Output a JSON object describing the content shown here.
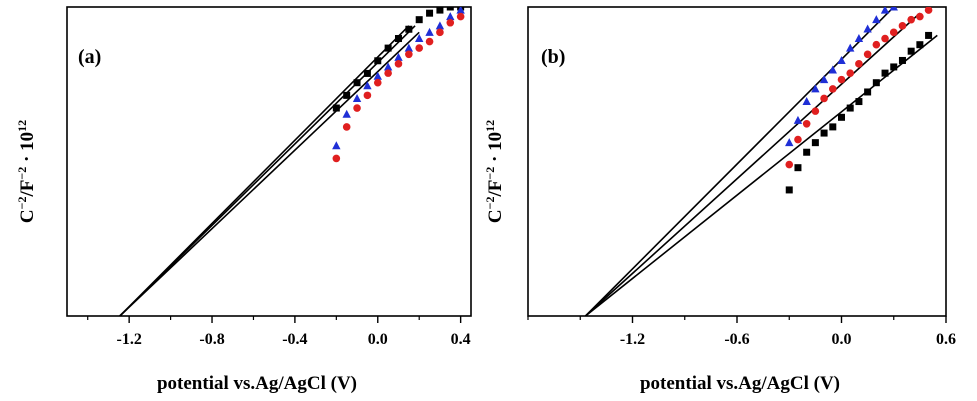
{
  "colors": {
    "square": "#000000",
    "triangle": "#1f2fd6",
    "circle": "#e01f1f",
    "axis": "#000000",
    "fit_line": "#000000"
  },
  "chart_data": [
    {
      "type": "scatter",
      "panel_label": "(a)",
      "xlabel": "potential vs.Ag/AgCl (V)",
      "ylabel": "C",
      "ylabel_sup1": "−2",
      "ylabel_mid": "/F",
      "ylabel_sup2": "−2",
      "ylabel_tail": " · 10",
      "ylabel_sup3": "12",
      "xlim": [
        -1.5,
        0.45
      ],
      "ylim": [
        0,
        1
      ],
      "xticks": [
        -1.2,
        -0.8,
        -0.4,
        0.0,
        0.4
      ],
      "xtick_labels": [
        "-1.2",
        "-0.8",
        "-0.4",
        "0.0",
        "0.4"
      ],
      "x_minor_step": 0.2,
      "series": [
        {
          "marker": "square",
          "color": "#000000",
          "x": [
            -0.2,
            -0.15,
            -0.1,
            -0.05,
            0.0,
            0.05,
            0.1,
            0.15,
            0.2,
            0.25,
            0.3,
            0.35,
            0.4
          ],
          "y": [
            0.673,
            0.714,
            0.755,
            0.785,
            0.826,
            0.867,
            0.898,
            0.928,
            0.959,
            0.98,
            0.99,
            1.0,
            1.0
          ]
        },
        {
          "marker": "triangle",
          "color": "#1f2fd6",
          "x": [
            -0.2,
            -0.15,
            -0.1,
            -0.05,
            0.0,
            0.05,
            0.1,
            0.15,
            0.2,
            0.25,
            0.3,
            0.35,
            0.4
          ],
          "y": [
            0.551,
            0.653,
            0.704,
            0.745,
            0.776,
            0.806,
            0.837,
            0.867,
            0.898,
            0.918,
            0.939,
            0.969,
            0.99
          ]
        },
        {
          "marker": "circle",
          "color": "#e01f1f",
          "x": [
            -0.2,
            -0.15,
            -0.1,
            -0.05,
            0.0,
            0.05,
            0.1,
            0.15,
            0.2,
            0.25,
            0.3,
            0.35,
            0.4
          ],
          "y": [
            0.51,
            0.612,
            0.673,
            0.714,
            0.755,
            0.786,
            0.816,
            0.847,
            0.867,
            0.888,
            0.918,
            0.949,
            0.969
          ]
        }
      ],
      "fit_lines": [
        {
          "x": [
            -1.245,
            0.15
          ],
          "y": [
            0.0,
            0.939
          ]
        },
        {
          "x": [
            -1.245,
            0.18
          ],
          "y": [
            0.0,
            0.939
          ]
        },
        {
          "x": [
            -1.245,
            0.2
          ],
          "y": [
            0.0,
            0.918
          ]
        }
      ]
    },
    {
      "type": "scatter",
      "panel_label": "(b)",
      "xlabel": "potential vs.Ag/AgCl (V)",
      "ylabel": "C",
      "ylabel_sup1": "−2",
      "ylabel_mid": "/F",
      "ylabel_sup2": "−2",
      "ylabel_tail": " · 10",
      "ylabel_sup3": "12",
      "xlim": [
        -1.8,
        0.6
      ],
      "ylim": [
        0,
        1
      ],
      "xticks": [
        -1.2,
        -0.6,
        0.0,
        0.6
      ],
      "xtick_labels": [
        "-1.2",
        "-0.6",
        "0.0",
        "0.6"
      ],
      "x_minor_step": 0.3,
      "series": [
        {
          "marker": "square",
          "color": "#000000",
          "x": [
            -0.3,
            -0.25,
            -0.2,
            -0.15,
            -0.1,
            -0.05,
            0.0,
            0.05,
            0.1,
            0.15,
            0.2,
            0.25,
            0.3,
            0.35,
            0.4,
            0.45,
            0.5
          ],
          "y": [
            0.408,
            0.48,
            0.53,
            0.561,
            0.592,
            0.612,
            0.643,
            0.673,
            0.694,
            0.725,
            0.755,
            0.786,
            0.806,
            0.827,
            0.857,
            0.878,
            0.908
          ]
        },
        {
          "marker": "triangle",
          "color": "#1f2fd6",
          "x": [
            -0.3,
            -0.25,
            -0.2,
            -0.15,
            -0.1,
            -0.05,
            0.0,
            0.05,
            0.1,
            0.15,
            0.2,
            0.25,
            0.3
          ],
          "y": [
            0.561,
            0.633,
            0.694,
            0.735,
            0.765,
            0.796,
            0.827,
            0.867,
            0.898,
            0.929,
            0.959,
            0.99,
            1.0
          ]
        },
        {
          "marker": "circle",
          "color": "#e01f1f",
          "x": [
            -0.3,
            -0.25,
            -0.2,
            -0.15,
            -0.1,
            -0.05,
            0.0,
            0.05,
            0.1,
            0.15,
            0.2,
            0.25,
            0.3,
            0.35,
            0.4,
            0.45,
            0.5
          ],
          "y": [
            0.49,
            0.571,
            0.622,
            0.663,
            0.704,
            0.735,
            0.765,
            0.786,
            0.816,
            0.847,
            0.878,
            0.898,
            0.918,
            0.939,
            0.959,
            0.969,
            0.99
          ]
        }
      ],
      "fit_lines": [
        {
          "x": [
            -1.47,
            0.3
          ],
          "y": [
            0.0,
            1.0
          ]
        },
        {
          "x": [
            -1.47,
            0.45
          ],
          "y": [
            0.0,
            0.98
          ]
        },
        {
          "x": [
            -1.47,
            0.55
          ],
          "y": [
            0.0,
            0.908
          ]
        }
      ]
    }
  ]
}
